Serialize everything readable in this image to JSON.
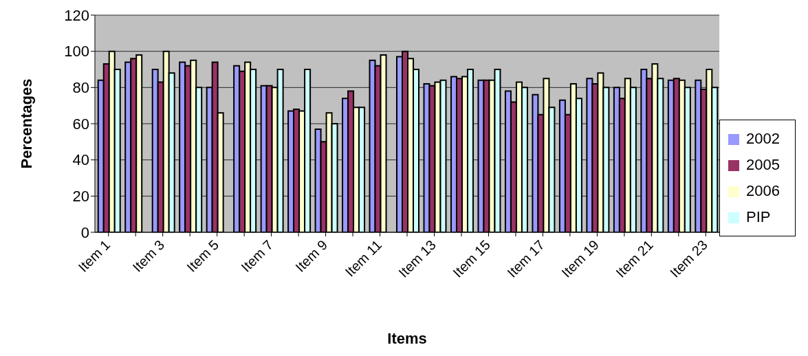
{
  "chart_data": {
    "type": "bar",
    "xlabel": "Items",
    "ylabel": "Percentages",
    "categories": [
      "Item 1",
      null,
      "Item 3",
      null,
      "Item 5",
      null,
      "Item 7",
      null,
      "Item 9",
      null,
      "Item 11",
      null,
      "Item 13",
      null,
      "Item 15",
      null,
      "Item 17",
      null,
      "Item 19",
      null,
      "Item 21",
      null,
      "Item 23"
    ],
    "series": [
      {
        "name": "2002",
        "color": "#9999ff",
        "values": [
          84,
          94,
          90,
          94,
          80,
          92,
          81,
          67,
          57,
          74,
          95,
          97,
          82,
          86,
          84,
          78,
          76,
          73,
          85,
          80,
          90,
          84,
          84
        ]
      },
      {
        "name": "2005",
        "color": "#993366",
        "values": [
          93,
          96,
          83,
          92,
          94,
          89,
          81,
          68,
          50,
          78,
          92,
          100,
          81,
          85,
          84,
          72,
          65,
          65,
          82,
          74,
          85,
          85,
          79
        ]
      },
      {
        "name": "2006",
        "color": "#ffffcc",
        "values": [
          100,
          98,
          100,
          95,
          66,
          94,
          80,
          67,
          66,
          69,
          98,
          96,
          83,
          86,
          84,
          83,
          85,
          82,
          88,
          85,
          93,
          84,
          90
        ]
      },
      {
        "name": "PIP",
        "color": "#ccffff",
        "values": [
          90,
          null,
          88,
          80,
          null,
          90,
          90,
          90,
          60,
          69,
          null,
          90,
          84,
          90,
          90,
          80,
          69,
          74,
          80,
          80,
          85,
          80,
          80
        ]
      }
    ],
    "ylim": [
      0,
      120
    ],
    "yticks": [
      0,
      20,
      40,
      60,
      80,
      100,
      120
    ],
    "grid": "y",
    "legend": "right"
  }
}
